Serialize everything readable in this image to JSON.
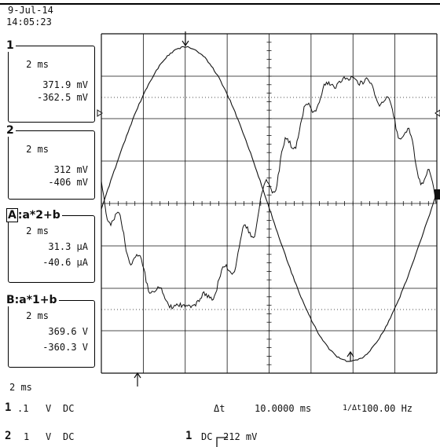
{
  "header": {
    "date": "9-Jul-14",
    "time": "14:05:23"
  },
  "channels": [
    {
      "id": "1",
      "label": "1",
      "timebase": "2 ms",
      "max": "371.9 mV",
      "min": "-362.5 mV"
    },
    {
      "id": "2",
      "label": "2",
      "timebase": "2 ms",
      "max": "312 mV",
      "min": "-406 mV"
    },
    {
      "id": "A",
      "label": "A",
      "expr_prefix": ":a",
      "expr_op": "*",
      "expr_src": "2",
      "expr_suffix": "+b",
      "timebase": "2 ms",
      "max": "31.3 µA",
      "min": "-40.6 µA"
    },
    {
      "id": "B",
      "label": "B",
      "expr_prefix": ":a",
      "expr_op": "*",
      "expr_src": "1",
      "expr_suffix": "+b",
      "timebase": "2 ms",
      "max": "369.6 V",
      "min": "-360.3 V"
    }
  ],
  "footer": {
    "timebase": "2 ms",
    "ch1_num": "1",
    "ch1_scale": ".1",
    "ch1_unit": "V",
    "ch1_coupling": "DC",
    "ch2_num": "2",
    "ch2_scale": "1",
    "ch2_unit": "V",
    "ch2_coupling": "DC",
    "delta_t_label": "Δt",
    "delta_t_value": "10.0000 ms",
    "inv_dt_label": "1/Δt",
    "inv_dt_value": "100.00 Hz",
    "trigger_source": "1",
    "trigger_coupling": "DC",
    "trigger_level": "212 mV"
  },
  "colors": {
    "trace": "#111111",
    "grid": "#000000",
    "background": "#ffffff"
  }
}
